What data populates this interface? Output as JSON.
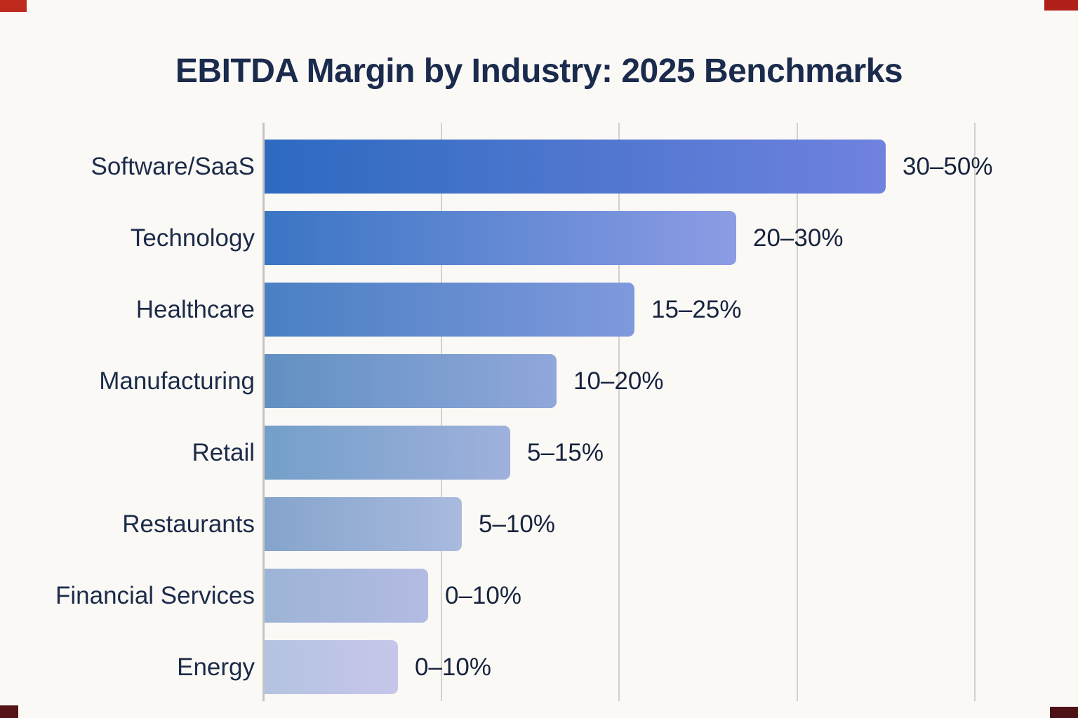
{
  "title": "EBITDA Margin by Industry: 2025 Benchmarks",
  "colors": {
    "background": "#fbf9f6",
    "title_text": "#1b2b4d",
    "category_text": "#1c2b49",
    "value_text": "#17233e",
    "gridline": "#d3d1cf",
    "axis_line": "#c7c5c3"
  },
  "chart_data": {
    "type": "bar",
    "orientation": "horizontal",
    "title": "EBITDA Margin by Industry: 2025 Benchmarks",
    "categories": [
      "Software/SaaS",
      "Technology",
      "Healthcare",
      "Manufacturing",
      "Retail",
      "Restaurants",
      "Financial Services",
      "Energy"
    ],
    "value_labels": [
      "30–50%",
      "20–30%",
      "15–25%",
      "10–20%",
      "5–15%",
      "5–10%",
      "0–10%",
      "0–10%"
    ],
    "ranges_pct": [
      [
        30,
        50
      ],
      [
        20,
        30
      ],
      [
        15,
        25
      ],
      [
        10,
        20
      ],
      [
        5,
        15
      ],
      [
        5,
        10
      ],
      [
        0,
        10
      ],
      [
        0,
        10
      ]
    ],
    "bar_plotted_extent_grid_units": [
      3.49,
      2.65,
      2.08,
      1.64,
      1.38,
      1.11,
      0.92,
      0.75
    ],
    "x_axis": {
      "tick_labels": "none",
      "gridline_count": 5,
      "grid": "vertical-only"
    },
    "legend_position": "none",
    "bar_color_style": "blue-to-lavender gradient, darkest at top row, lightest at bottom row"
  },
  "bars": [
    {
      "category": "Software/SaaS",
      "value_label": "30–50%",
      "units": 3.49,
      "color_start": "#2d6ac0",
      "color_end": "#6f82de"
    },
    {
      "category": "Technology",
      "value_label": "20–30%",
      "units": 2.65,
      "color_start": "#3a75c4",
      "color_end": "#8c9ce4"
    },
    {
      "category": "Healthcare",
      "value_label": "15–25%",
      "units": 2.08,
      "color_start": "#4a7fc3",
      "color_end": "#7f99dc"
    },
    {
      "category": "Manufacturing",
      "value_label": "10–20%",
      "units": 1.64,
      "color_start": "#6290c2",
      "color_end": "#90a7da"
    },
    {
      "category": "Retail",
      "value_label": "5–15%",
      "units": 1.38,
      "color_start": "#739fc9",
      "color_end": "#9fb1dc"
    },
    {
      "category": "Restaurants",
      "value_label": "5–10%",
      "units": 1.11,
      "color_start": "#85a4cc",
      "color_end": "#a9bade"
    },
    {
      "category": "Financial Services",
      "value_label": "0–10%",
      "units": 0.92,
      "color_start": "#9cb4d5",
      "color_end": "#b4bbe3"
    },
    {
      "category": "Energy",
      "value_label": "0–10%",
      "units": 0.75,
      "color_start": "#b4c3e1",
      "color_end": "#c6c6ea"
    }
  ],
  "corner_marks": [
    {
      "position": "top-left",
      "color": "#bf2a1f"
    },
    {
      "position": "top-right",
      "color": "#b02019"
    },
    {
      "position": "bottom-left",
      "color": "#571418"
    },
    {
      "position": "bottom-right",
      "color": "#4e1216"
    }
  ]
}
